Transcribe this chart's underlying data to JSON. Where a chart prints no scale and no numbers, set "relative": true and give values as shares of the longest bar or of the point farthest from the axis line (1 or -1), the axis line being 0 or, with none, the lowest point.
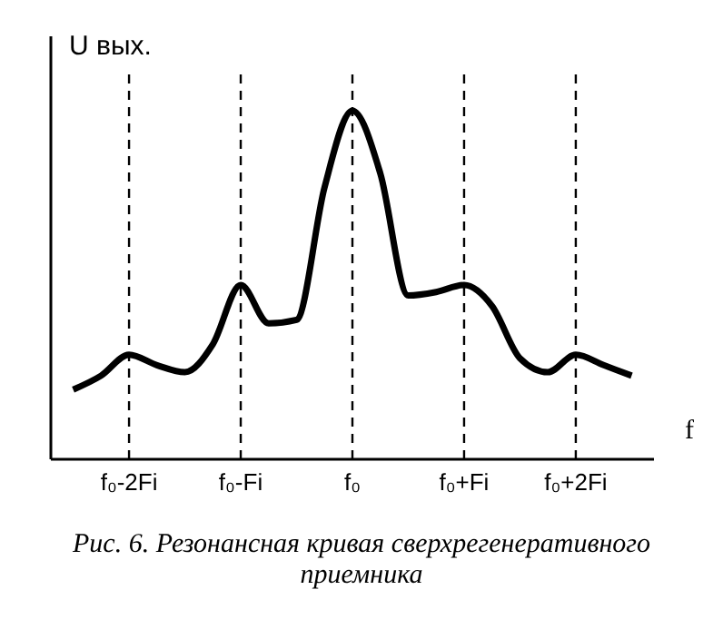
{
  "chart_data": {
    "type": "line",
    "relative": true,
    "ylabel": "U вых.",
    "xlabel": "f",
    "annotations": [
      "Рис. 6. Резонансная кривая сверхрегенеративного приемника"
    ],
    "categories": [
      null,
      null,
      "f₀-2Fi",
      null,
      null,
      null,
      "f₀-Fi",
      null,
      null,
      null,
      "f₀",
      null,
      null,
      null,
      "f₀+Fi",
      null,
      null,
      null,
      "f₀+2Fi",
      null,
      null
    ],
    "ref_lines": [
      {
        "axis": "x",
        "value": "f₀-2Fi",
        "line_style": "dashed"
      },
      {
        "axis": "x",
        "value": "f₀-Fi",
        "line_style": "dashed"
      },
      {
        "axis": "x",
        "value": "f₀",
        "line_style": "dashed"
      },
      {
        "axis": "x",
        "value": "f₀+Fi",
        "line_style": "dashed"
      },
      {
        "axis": "x",
        "value": "f₀+2Fi",
        "line_style": "dashed"
      }
    ],
    "series": [
      {
        "color": "#000000",
        "values": [
          0.2,
          0.24,
          0.3,
          0.27,
          0.25,
          0.33,
          0.5,
          0.39,
          0.4,
          0.78,
          1,
          0.82,
          0.47,
          0.48,
          0.5,
          0.44,
          0.29,
          0.25,
          0.3,
          0.27,
          0.24
        ]
      }
    ]
  }
}
